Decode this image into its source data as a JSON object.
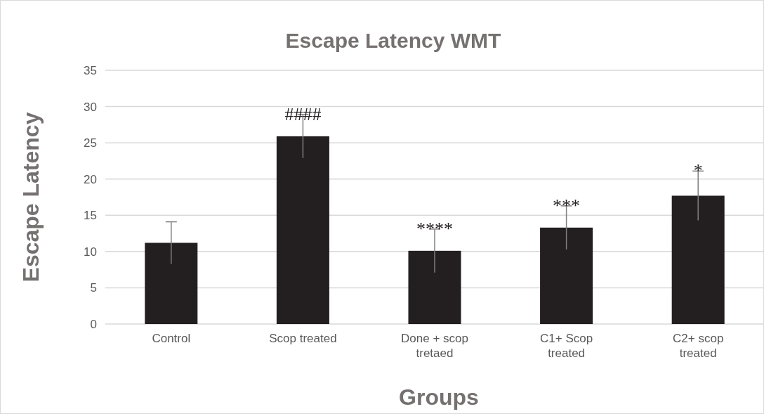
{
  "chart_data": {
    "type": "bar",
    "title": "Escape Latency WMT",
    "xlabel": "Groups",
    "ylabel": "Escape Latency",
    "categories": [
      "Control",
      "Scop treated",
      "Done + scop tretaed",
      "C1+ Scop treated",
      "C2+ scop treated"
    ],
    "values": [
      11.2,
      25.9,
      10.1,
      13.3,
      17.7
    ],
    "errors": [
      2.9,
      3.0,
      3.0,
      3.0,
      3.4
    ],
    "color": "#231f20",
    "ylim": [
      0,
      35
    ],
    "yticks": [
      0,
      5,
      10,
      15,
      20,
      25,
      30,
      35
    ],
    "grid": "y",
    "annotations": [
      {
        "text": "####",
        "x": "Scop treated",
        "y": 28.9
      },
      {
        "text": "****",
        "x": "Done + scop tretaed",
        "y": 13.1
      },
      {
        "text": "***",
        "x": "C1+ Scop treated",
        "y": 16.3
      },
      {
        "text": "*",
        "x": "C2+ scop treated",
        "y": 21.1
      }
    ]
  }
}
